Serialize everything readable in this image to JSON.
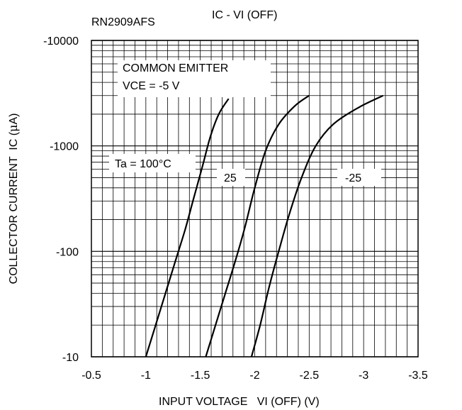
{
  "header": {
    "part_number": "RN2909AFS",
    "chart_title": "IC - VI (OFF)"
  },
  "chart_data": {
    "type": "line",
    "title": "IC - VI (OFF)",
    "xlabel": "INPUT VOLTAGE   VI (OFF) (V)",
    "ylabel_prefix": "COLLECTOR CURRENT  IC (",
    "ylabel_mu": "μ",
    "ylabel_suffix": "A)",
    "x_ticks": [
      "-0.5",
      "-1",
      "-1.5",
      "-2",
      "-2.5",
      "-3",
      "-3.5"
    ],
    "x_tick_values": [
      -0.5,
      -1,
      -1.5,
      -2,
      -2.5,
      -3,
      -3.5
    ],
    "y_ticks": [
      "-10000",
      "-1000",
      "-100",
      "-10"
    ],
    "y_tick_values": [
      -10000,
      -1000,
      -100,
      -10
    ],
    "xlim": [
      -0.5,
      -3.5
    ],
    "ylim": [
      -10,
      -10000
    ],
    "y_scale": "log",
    "grid": true,
    "annotations": {
      "condition_line1": "COMMON EMITTER",
      "condition_line2": "VCE = -5 V",
      "ta_label": "Ta = 100°C",
      "label_25": "25",
      "label_m25": "-25"
    },
    "series": [
      {
        "temp": "100",
        "points": [
          [
            -1.0,
            -10
          ],
          [
            -1.09,
            -20
          ],
          [
            -1.18,
            -40
          ],
          [
            -1.27,
            -80
          ],
          [
            -1.36,
            -160
          ],
          [
            -1.44,
            -320
          ],
          [
            -1.52,
            -640
          ],
          [
            -1.59,
            -1200
          ],
          [
            -1.67,
            -2000
          ],
          [
            -1.76,
            -2800
          ]
        ]
      },
      {
        "temp": "25",
        "points": [
          [
            -1.55,
            -10
          ],
          [
            -1.64,
            -20
          ],
          [
            -1.73,
            -40
          ],
          [
            -1.82,
            -80
          ],
          [
            -1.91,
            -170
          ],
          [
            -2.0,
            -400
          ],
          [
            -2.1,
            -900
          ],
          [
            -2.22,
            -1600
          ],
          [
            -2.37,
            -2400
          ],
          [
            -2.5,
            -3000
          ]
        ]
      },
      {
        "temp": "-25",
        "points": [
          [
            -1.97,
            -10
          ],
          [
            -2.05,
            -20
          ],
          [
            -2.13,
            -45
          ],
          [
            -2.22,
            -100
          ],
          [
            -2.32,
            -230
          ],
          [
            -2.43,
            -500
          ],
          [
            -2.56,
            -1000
          ],
          [
            -2.72,
            -1600
          ],
          [
            -2.95,
            -2300
          ],
          [
            -3.18,
            -3000
          ]
        ]
      }
    ]
  }
}
